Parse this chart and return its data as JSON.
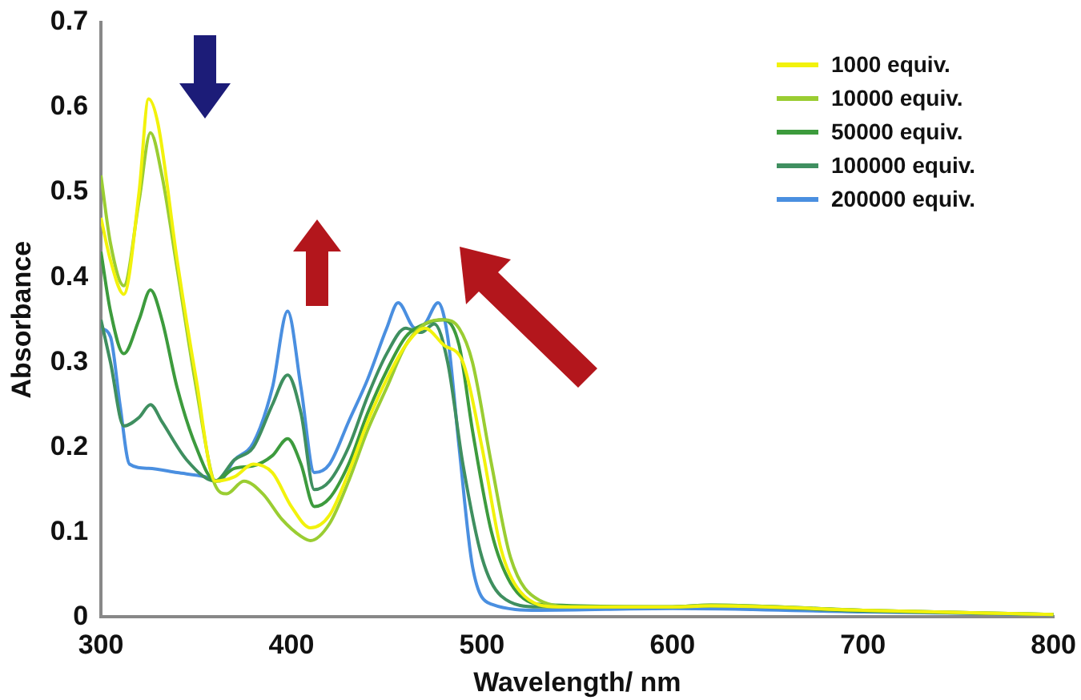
{
  "chart_data": {
    "type": "line",
    "xlabel": "Wavelength/ nm",
    "ylabel": "Absorbance",
    "xlim": [
      300,
      800
    ],
    "xticks": [
      300,
      400,
      500,
      600,
      700,
      800
    ],
    "ylim": [
      0,
      0.7
    ],
    "yticks": [
      0,
      0.1,
      0.2,
      0.3,
      0.4,
      0.5,
      0.6,
      0.7
    ],
    "grid": false,
    "legend": "top right",
    "marker": "none",
    "line_style": "solid",
    "series": [
      {
        "name": "1000 equiv.",
        "color": "#f2f20c",
        "x": [
          300,
          305,
          312,
          320,
          325,
          330,
          340,
          350,
          360,
          370,
          380,
          390,
          400,
          410,
          420,
          430,
          440,
          450,
          460,
          470,
          480,
          490,
          500,
          510,
          520,
          540,
          600,
          620,
          700,
          800
        ],
        "values": [
          0.47,
          0.42,
          0.38,
          0.5,
          0.61,
          0.58,
          0.42,
          0.28,
          0.16,
          0.165,
          0.18,
          0.17,
          0.13,
          0.105,
          0.12,
          0.17,
          0.23,
          0.28,
          0.32,
          0.34,
          0.32,
          0.3,
          0.2,
          0.08,
          0.03,
          0.012,
          0.012,
          0.013,
          0.008,
          0.003
        ]
      },
      {
        "name": "10000 equiv.",
        "color": "#9acd32",
        "x": [
          300,
          305,
          312,
          320,
          326,
          332,
          340,
          350,
          360,
          366,
          375,
          385,
          395,
          405,
          410,
          420,
          430,
          440,
          450,
          460,
          470,
          480,
          488,
          495,
          505,
          515,
          530,
          550,
          600,
          620,
          700,
          800
        ],
        "values": [
          0.52,
          0.44,
          0.39,
          0.49,
          0.57,
          0.52,
          0.41,
          0.27,
          0.155,
          0.145,
          0.16,
          0.145,
          0.115,
          0.095,
          0.09,
          0.11,
          0.16,
          0.22,
          0.27,
          0.32,
          0.345,
          0.35,
          0.34,
          0.3,
          0.18,
          0.07,
          0.02,
          0.012,
          0.012,
          0.014,
          0.008,
          0.003
        ]
      },
      {
        "name": "50000 equiv.",
        "color": "#3d9b3d",
        "x": [
          300,
          305,
          312,
          320,
          326,
          332,
          340,
          350,
          360,
          370,
          380,
          390,
          398,
          405,
          412,
          420,
          430,
          440,
          450,
          460,
          470,
          480,
          488,
          495,
          505,
          515,
          530,
          600,
          620,
          700,
          800
        ],
        "values": [
          0.43,
          0.36,
          0.31,
          0.35,
          0.385,
          0.35,
          0.27,
          0.2,
          0.16,
          0.175,
          0.178,
          0.19,
          0.21,
          0.18,
          0.13,
          0.14,
          0.18,
          0.24,
          0.29,
          0.33,
          0.345,
          0.35,
          0.32,
          0.22,
          0.1,
          0.04,
          0.015,
          0.012,
          0.014,
          0.008,
          0.003
        ]
      },
      {
        "name": "100000 equiv.",
        "color": "#3f8f60",
        "x": [
          300,
          305,
          312,
          320,
          326,
          332,
          345,
          360,
          370,
          380,
          390,
          398,
          405,
          412,
          420,
          430,
          440,
          450,
          460,
          468,
          475,
          482,
          490,
          500,
          510,
          530,
          600,
          620,
          700,
          800
        ],
        "values": [
          0.35,
          0.3,
          0.225,
          0.235,
          0.25,
          0.23,
          0.185,
          0.16,
          0.185,
          0.2,
          0.25,
          0.285,
          0.24,
          0.15,
          0.16,
          0.2,
          0.26,
          0.31,
          0.34,
          0.335,
          0.345,
          0.3,
          0.18,
          0.07,
          0.025,
          0.012,
          0.012,
          0.013,
          0.007,
          0.003
        ]
      },
      {
        "name": "200000 equiv.",
        "color": "#4a8fe0",
        "x": [
          300,
          305,
          310,
          315,
          325,
          340,
          355,
          362,
          370,
          380,
          390,
          398,
          405,
          412,
          420,
          430,
          440,
          450,
          456,
          465,
          470,
          477,
          482,
          488,
          495,
          505,
          530,
          600,
          700,
          800
        ],
        "values": [
          0.34,
          0.33,
          0.25,
          0.18,
          0.175,
          0.17,
          0.165,
          0.16,
          0.185,
          0.205,
          0.27,
          0.36,
          0.27,
          0.17,
          0.18,
          0.23,
          0.28,
          0.34,
          0.37,
          0.34,
          0.345,
          0.37,
          0.33,
          0.2,
          0.06,
          0.015,
          0.008,
          0.01,
          0.006,
          0.003
        ]
      }
    ]
  }
}
